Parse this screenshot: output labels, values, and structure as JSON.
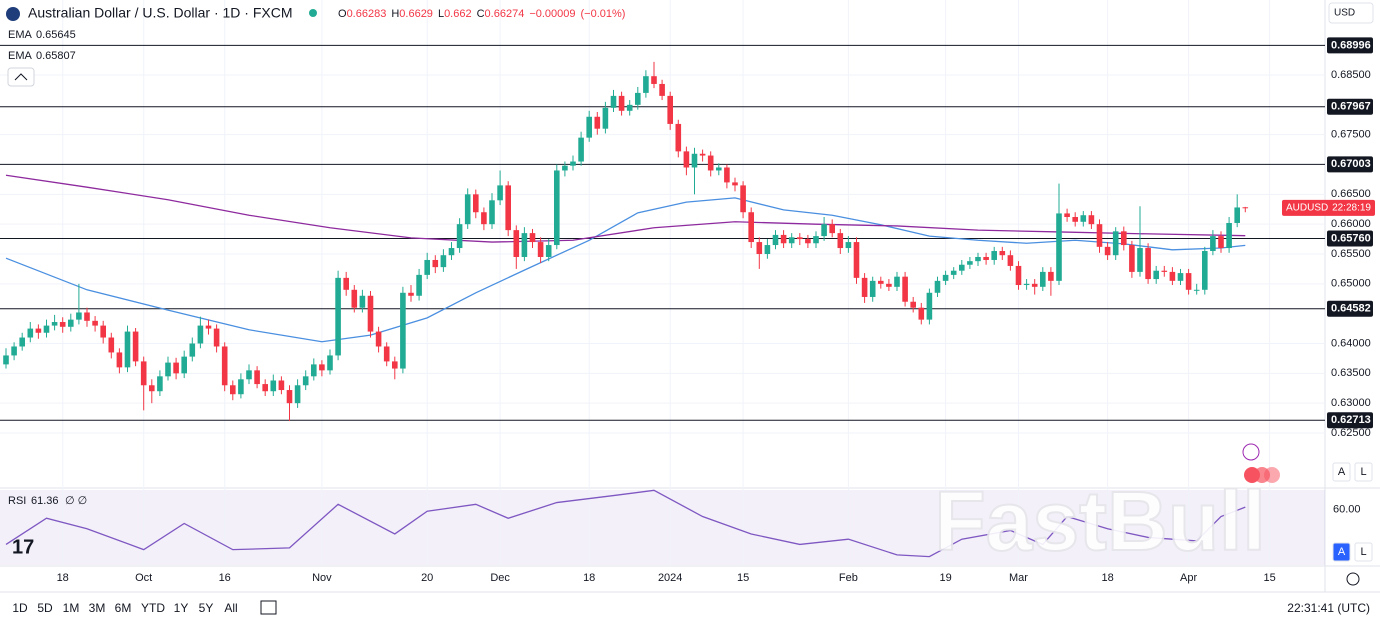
{
  "chart_data": [
    {
      "type": "candlestick",
      "title": "Australian Dollar / U.S. Dollar · 1D · FXCM",
      "ohlc_labels": [
        "O",
        "H",
        "L",
        "C"
      ],
      "change": "−0.00009",
      "change_pct": "(−0.01%)",
      "up_color": "#22ab94",
      "down_color": "#f23645",
      "symbol": "AUDUSD",
      "countdown": "22:28:19",
      "currency": "USD",
      "ohlc": [
        [
          0.6365,
          0.6392,
          0.6358,
          0.638
        ],
        [
          0.638,
          0.6402,
          0.6372,
          0.6395
        ],
        [
          0.6395,
          0.6418,
          0.6388,
          0.641
        ],
        [
          0.641,
          0.6436,
          0.6402,
          0.6425
        ],
        [
          0.6425,
          0.6432,
          0.6408,
          0.6418
        ],
        [
          0.6418,
          0.644,
          0.641,
          0.643
        ],
        [
          0.643,
          0.6448,
          0.6422,
          0.6436
        ],
        [
          0.6436,
          0.6444,
          0.6418,
          0.6428
        ],
        [
          0.6428,
          0.645,
          0.642,
          0.644
        ],
        [
          0.644,
          0.65,
          0.6432,
          0.6452
        ],
        [
          0.6452,
          0.646,
          0.6428,
          0.6438
        ],
        [
          0.6438,
          0.6446,
          0.642,
          0.643
        ],
        [
          0.643,
          0.6438,
          0.64,
          0.641
        ],
        [
          0.641,
          0.6418,
          0.6375,
          0.6385
        ],
        [
          0.6385,
          0.6392,
          0.635,
          0.636
        ],
        [
          0.636,
          0.643,
          0.6352,
          0.642
        ],
        [
          0.642,
          0.6426,
          0.6362,
          0.637
        ],
        [
          0.637,
          0.6378,
          0.6288,
          0.633
        ],
        [
          0.633,
          0.634,
          0.63,
          0.632
        ],
        [
          0.632,
          0.6355,
          0.6312,
          0.6345
        ],
        [
          0.6345,
          0.6378,
          0.6338,
          0.6368
        ],
        [
          0.6368,
          0.6376,
          0.634,
          0.635
        ],
        [
          0.635,
          0.6388,
          0.6342,
          0.6378
        ],
        [
          0.6378,
          0.641,
          0.637,
          0.64
        ],
        [
          0.64,
          0.6445,
          0.6392,
          0.643
        ],
        [
          0.643,
          0.644,
          0.6415,
          0.6425
        ],
        [
          0.6425,
          0.6432,
          0.6385,
          0.6395
        ],
        [
          0.6395,
          0.6402,
          0.632,
          0.633
        ],
        [
          0.633,
          0.6338,
          0.6305,
          0.6315
        ],
        [
          0.6315,
          0.635,
          0.6308,
          0.634
        ],
        [
          0.634,
          0.6365,
          0.6332,
          0.6355
        ],
        [
          0.6355,
          0.6362,
          0.6325,
          0.6332
        ],
        [
          0.6332,
          0.634,
          0.6312,
          0.632
        ],
        [
          0.632,
          0.6348,
          0.6312,
          0.6338
        ],
        [
          0.6338,
          0.6345,
          0.6315,
          0.6322
        ],
        [
          0.6322,
          0.633,
          0.627,
          0.63
        ],
        [
          0.63,
          0.634,
          0.6292,
          0.633
        ],
        [
          0.633,
          0.6355,
          0.6322,
          0.6345
        ],
        [
          0.6345,
          0.6375,
          0.6338,
          0.6365
        ],
        [
          0.6365,
          0.6372,
          0.6345,
          0.6355
        ],
        [
          0.6355,
          0.639,
          0.6348,
          0.638
        ],
        [
          0.638,
          0.6522,
          0.6372,
          0.651
        ],
        [
          0.651,
          0.652,
          0.648,
          0.649
        ],
        [
          0.649,
          0.6498,
          0.6452,
          0.646
        ],
        [
          0.646,
          0.649,
          0.6452,
          0.648
        ],
        [
          0.648,
          0.6488,
          0.641,
          0.642
        ],
        [
          0.642,
          0.6428,
          0.6385,
          0.6395
        ],
        [
          0.6395,
          0.6402,
          0.6362,
          0.637
        ],
        [
          0.637,
          0.6378,
          0.634,
          0.6358
        ],
        [
          0.6358,
          0.6495,
          0.635,
          0.6485
        ],
        [
          0.6485,
          0.6498,
          0.647,
          0.648
        ],
        [
          0.648,
          0.6525,
          0.6472,
          0.6515
        ],
        [
          0.6515,
          0.6552,
          0.6508,
          0.654
        ],
        [
          0.654,
          0.6548,
          0.6518,
          0.6528
        ],
        [
          0.6528,
          0.6558,
          0.652,
          0.6548
        ],
        [
          0.6548,
          0.657,
          0.654,
          0.656
        ],
        [
          0.656,
          0.661,
          0.6552,
          0.66
        ],
        [
          0.66,
          0.666,
          0.6592,
          0.665
        ],
        [
          0.665,
          0.6658,
          0.661,
          0.662
        ],
        [
          0.662,
          0.6628,
          0.659,
          0.66
        ],
        [
          0.66,
          0.6652,
          0.6592,
          0.664
        ],
        [
          0.664,
          0.669,
          0.6632,
          0.6665
        ],
        [
          0.6665,
          0.6672,
          0.658,
          0.659
        ],
        [
          0.659,
          0.6598,
          0.6525,
          0.6545
        ],
        [
          0.6545,
          0.6595,
          0.6538,
          0.6585
        ],
        [
          0.6585,
          0.6592,
          0.656,
          0.657
        ],
        [
          0.657,
          0.6578,
          0.6535,
          0.6545
        ],
        [
          0.6545,
          0.6575,
          0.6538,
          0.6565
        ],
        [
          0.6565,
          0.67,
          0.6558,
          0.669
        ],
        [
          0.669,
          0.6705,
          0.668,
          0.6698
        ],
        [
          0.6698,
          0.6715,
          0.669,
          0.6705
        ],
        [
          0.6705,
          0.6755,
          0.6698,
          0.6745
        ],
        [
          0.6745,
          0.679,
          0.6738,
          0.678
        ],
        [
          0.678,
          0.6788,
          0.675,
          0.676
        ],
        [
          0.676,
          0.6805,
          0.6752,
          0.6795
        ],
        [
          0.6795,
          0.6825,
          0.6788,
          0.6815
        ],
        [
          0.6815,
          0.6822,
          0.6782,
          0.679
        ],
        [
          0.679,
          0.6808,
          0.6782,
          0.68
        ],
        [
          0.68,
          0.683,
          0.6792,
          0.682
        ],
        [
          0.682,
          0.6858,
          0.6812,
          0.6848
        ],
        [
          0.6848,
          0.6872,
          0.6828,
          0.6835
        ],
        [
          0.6835,
          0.6842,
          0.6808,
          0.6815
        ],
        [
          0.6815,
          0.6822,
          0.6758,
          0.6768
        ],
        [
          0.6768,
          0.6775,
          0.6712,
          0.6722
        ],
        [
          0.6722,
          0.673,
          0.6682,
          0.6695
        ],
        [
          0.6695,
          0.6728,
          0.665,
          0.6718
        ],
        [
          0.6718,
          0.6725,
          0.6705,
          0.6715
        ],
        [
          0.6715,
          0.6722,
          0.668,
          0.669
        ],
        [
          0.669,
          0.6702,
          0.6682,
          0.6695
        ],
        [
          0.6695,
          0.67,
          0.666,
          0.667
        ],
        [
          0.667,
          0.6678,
          0.6655,
          0.6665
        ],
        [
          0.6665,
          0.6672,
          0.661,
          0.662
        ],
        [
          0.662,
          0.6628,
          0.656,
          0.657
        ],
        [
          0.657,
          0.6578,
          0.6525,
          0.655
        ],
        [
          0.655,
          0.6575,
          0.6542,
          0.6565
        ],
        [
          0.6565,
          0.659,
          0.6558,
          0.6582
        ],
        [
          0.6582,
          0.659,
          0.656,
          0.6568
        ],
        [
          0.6568,
          0.6585,
          0.656,
          0.6578
        ],
        [
          0.6578,
          0.6585,
          0.6565,
          0.6575
        ],
        [
          0.6575,
          0.6582,
          0.656,
          0.6568
        ],
        [
          0.6568,
          0.6588,
          0.656,
          0.658
        ],
        [
          0.658,
          0.6612,
          0.6572,
          0.66
        ],
        [
          0.66,
          0.6608,
          0.6578,
          0.6585
        ],
        [
          0.6585,
          0.6592,
          0.655,
          0.656
        ],
        [
          0.656,
          0.658,
          0.6552,
          0.657
        ],
        [
          0.657,
          0.6578,
          0.65,
          0.651
        ],
        [
          0.651,
          0.6518,
          0.6468,
          0.6478
        ],
        [
          0.6478,
          0.6512,
          0.647,
          0.6505
        ],
        [
          0.6505,
          0.6512,
          0.6492,
          0.65
        ],
        [
          0.65,
          0.6508,
          0.6488,
          0.6495
        ],
        [
          0.6495,
          0.652,
          0.6488,
          0.6512
        ],
        [
          0.6512,
          0.652,
          0.6462,
          0.647
        ],
        [
          0.647,
          0.6478,
          0.6452,
          0.646
        ],
        [
          0.646,
          0.6468,
          0.6432,
          0.644
        ],
        [
          0.644,
          0.6492,
          0.6432,
          0.6485
        ],
        [
          0.6485,
          0.6512,
          0.6478,
          0.6505
        ],
        [
          0.6505,
          0.6522,
          0.6498,
          0.6515
        ],
        [
          0.6515,
          0.6528,
          0.6508,
          0.6522
        ],
        [
          0.6522,
          0.654,
          0.6515,
          0.6532
        ],
        [
          0.6532,
          0.6545,
          0.6525,
          0.6538
        ],
        [
          0.6538,
          0.6552,
          0.653,
          0.6545
        ],
        [
          0.6545,
          0.6552,
          0.6532,
          0.654
        ],
        [
          0.654,
          0.6562,
          0.6532,
          0.6555
        ],
        [
          0.6555,
          0.6562,
          0.654,
          0.6548
        ],
        [
          0.6548,
          0.6556,
          0.6522,
          0.653
        ],
        [
          0.653,
          0.6538,
          0.649,
          0.6498
        ],
        [
          0.6498,
          0.6508,
          0.649,
          0.65
        ],
        [
          0.65,
          0.6508,
          0.6482,
          0.6495
        ],
        [
          0.6495,
          0.6528,
          0.6488,
          0.652
        ],
        [
          0.652,
          0.6528,
          0.648,
          0.6505
        ],
        [
          0.6505,
          0.6668,
          0.6498,
          0.6618
        ],
        [
          0.6618,
          0.6626,
          0.6604,
          0.6612
        ],
        [
          0.6612,
          0.662,
          0.6596,
          0.6604
        ],
        [
          0.6604,
          0.6622,
          0.6596,
          0.6615
        ],
        [
          0.6615,
          0.6622,
          0.6592,
          0.66
        ],
        [
          0.66,
          0.6608,
          0.6552,
          0.6562
        ],
        [
          0.6562,
          0.657,
          0.654,
          0.6548
        ],
        [
          0.6548,
          0.6595,
          0.654,
          0.6588
        ],
        [
          0.6588,
          0.6596,
          0.6556,
          0.6565
        ],
        [
          0.6565,
          0.6572,
          0.651,
          0.652
        ],
        [
          0.652,
          0.663,
          0.6512,
          0.656
        ],
        [
          0.656,
          0.6568,
          0.65,
          0.6508
        ],
        [
          0.6508,
          0.653,
          0.65,
          0.6522
        ],
        [
          0.6522,
          0.653,
          0.6512,
          0.652
        ],
        [
          0.652,
          0.6528,
          0.6498,
          0.6505
        ],
        [
          0.6505,
          0.6525,
          0.6498,
          0.6518
        ],
        [
          0.6518,
          0.6525,
          0.6482,
          0.649
        ],
        [
          0.649,
          0.65,
          0.6482,
          0.649
        ],
        [
          0.649,
          0.6562,
          0.6482,
          0.6555
        ],
        [
          0.6555,
          0.659,
          0.6548,
          0.658
        ],
        [
          0.658,
          0.6588,
          0.6552,
          0.656
        ],
        [
          0.656,
          0.6612,
          0.6552,
          0.6602
        ],
        [
          0.6602,
          0.665,
          0.6595,
          0.6628
        ],
        [
          0.66283,
          0.6629,
          0.662,
          0.66274
        ]
      ],
      "xlim": [
        -0.74,
        162.84
      ],
      "xticks": [
        {
          "value": 7,
          "label": "18"
        },
        {
          "value": 17,
          "label": "Oct"
        },
        {
          "value": 27,
          "label": "16"
        },
        {
          "value": 39,
          "label": "Nov"
        },
        {
          "value": 52,
          "label": "20"
        },
        {
          "value": 61,
          "label": "Dec"
        },
        {
          "value": 72,
          "label": "18"
        },
        {
          "value": 82,
          "label": "2024"
        },
        {
          "value": 91,
          "label": "15"
        },
        {
          "value": 104,
          "label": "Feb"
        },
        {
          "value": 116,
          "label": "19"
        },
        {
          "value": 125,
          "label": "Mar"
        },
        {
          "value": 136,
          "label": "18"
        },
        {
          "value": 146,
          "label": "Apr"
        },
        {
          "value": 156,
          "label": "15"
        }
      ],
      "ylim": [
        0.61595,
        0.69757
      ],
      "yticks": [
        {
          "value": 0.685,
          "label": "0.68500"
        },
        {
          "value": 0.675,
          "label": "0.67500"
        },
        {
          "value": 0.665,
          "label": "0.66500"
        },
        {
          "value": 0.66,
          "label": "0.66000"
        },
        {
          "value": 0.655,
          "label": "0.65500"
        },
        {
          "value": 0.65,
          "label": "0.65000"
        },
        {
          "value": 0.64,
          "label": "0.64000"
        },
        {
          "value": 0.635,
          "label": "0.63500"
        },
        {
          "value": 0.63,
          "label": "0.63000"
        },
        {
          "value": 0.625,
          "label": "0.62500"
        }
      ],
      "levels": [
        0.68996,
        0.67967,
        0.67003,
        {
          "value": 0.6576,
          "label": "0.65760"
        },
        0.64582,
        0.62713
      ],
      "level_color": "#131722",
      "series": [
        {
          "name": "EMA",
          "color": "#4a8fe0",
          "x": [
            0,
            10,
            20,
            30,
            39,
            45,
            52,
            58,
            64,
            72,
            78,
            84,
            90,
            96,
            102,
            108,
            114,
            120,
            126,
            132,
            138,
            144,
            150,
            153
          ],
          "values": [
            0.6543,
            0.649,
            0.6456,
            0.6423,
            0.6403,
            0.6414,
            0.6443,
            0.6485,
            0.6523,
            0.6573,
            0.6619,
            0.6637,
            0.6644,
            0.6624,
            0.6615,
            0.6599,
            0.658,
            0.6573,
            0.6568,
            0.6573,
            0.6567,
            0.6557,
            0.656,
            0.65645
          ]
        },
        {
          "name": "EMA",
          "color": "#8e2a9e",
          "x": [
            0,
            10,
            20,
            30,
            40,
            50,
            60,
            70,
            80,
            90,
            100,
            110,
            120,
            130,
            140,
            153
          ],
          "values": [
            0.6682,
            0.6662,
            0.6641,
            0.6615,
            0.6594,
            0.6577,
            0.657,
            0.6573,
            0.6594,
            0.6604,
            0.66,
            0.6597,
            0.659,
            0.6587,
            0.6584,
            0.65807
          ]
        }
      ]
    },
    {
      "type": "line",
      "title": "RSI",
      "params": "∅ ∅",
      "color": "#7e57c2",
      "ylim": [
        28.2,
        71.2
      ],
      "yticks": [
        {
          "value": 60,
          "label": "60.00"
        }
      ],
      "x": [
        0,
        5,
        10,
        17,
        22,
        28,
        35,
        41,
        48,
        52,
        58,
        62,
        68,
        75,
        80,
        86,
        92,
        98,
        104,
        110,
        114,
        118,
        124,
        128,
        131,
        136,
        141,
        147,
        150,
        153
      ],
      "values": [
        40,
        55,
        49,
        37,
        52,
        37,
        38,
        63,
        46,
        59,
        63,
        55,
        64,
        68,
        71,
        56,
        46,
        40,
        43,
        34,
        33,
        43,
        48,
        40,
        56,
        49,
        44,
        42,
        56,
        61.36
      ]
    }
  ],
  "toolbar": {
    "ranges": [
      "1D",
      "5D",
      "1M",
      "3M",
      "6M",
      "YTD",
      "1Y",
      "5Y",
      "All"
    ],
    "clock": "22:31:41 (UTC)"
  },
  "scale_buttons": [
    "A",
    "L"
  ],
  "watermark": "FastBull"
}
